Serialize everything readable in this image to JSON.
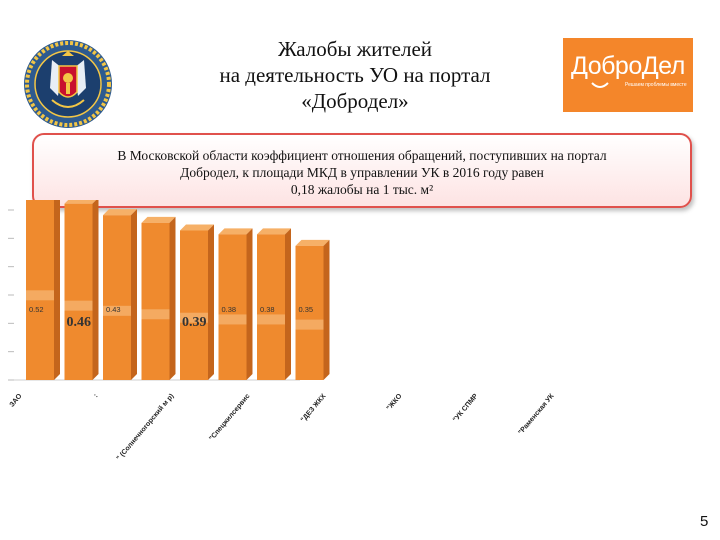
{
  "title": {
    "line1": "Жалобы жителей",
    "line2": "на деятельность УО на портал",
    "line3": "«Добродел»"
  },
  "logo": {
    "name": "ДоброДел",
    "subtitle": "Решаем проблемы вместе"
  },
  "callout": {
    "line1": "В Московской области коэффициент отношения обращений, поступивших на портал",
    "line2": "Добродел, к площади МКД в управлении УК в 2016 году равен",
    "line3": "0,18 жалобы на 1 тыс. м²"
  },
  "page_number": "5",
  "colors": {
    "bar_front": "#ef8a2e",
    "bar_side": "#c4651c",
    "bar_top": "#f6b067",
    "callout_border": "#e0514c",
    "logo_bg": "#f4862a"
  },
  "chart_data": {
    "type": "bar",
    "categories": [
      "ЗАО",
      ":",
      "\" (Солнечногорский м р)",
      "\"Спецжилсервис",
      "\"ДЕЗ ЖКХ",
      "\"ЖКО",
      "\"УК СПМР",
      "\"Раменская УК"
    ],
    "values": [
      0.52,
      0.46,
      0.43,
      0.41,
      0.39,
      0.38,
      0.38,
      0.35
    ],
    "labels": [
      "0.52",
      "0.46",
      "0.43",
      "",
      "0.39",
      "0.38",
      "0.38",
      "0.35"
    ],
    "label_emphasis": [
      false,
      true,
      false,
      false,
      true,
      false,
      false,
      false
    ],
    "ylim": [
      0,
      0.6
    ],
    "grid": false,
    "legend": "none",
    "title": "",
    "xlabel": "",
    "ylabel": ""
  }
}
